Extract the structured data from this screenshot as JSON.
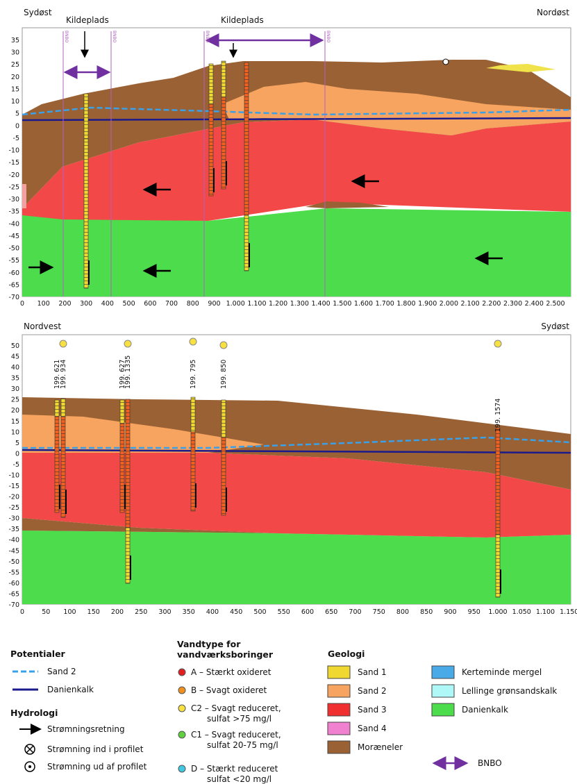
{
  "profiles": [
    {
      "left_label": "Sydøst",
      "right_label": "Nordøst",
      "source_labels": [
        "Kildeplads",
        "Kildeplads"
      ],
      "bnbo_line_labels": [
        "BNBO",
        "BNBO",
        "BNBO",
        "BNBO"
      ],
      "y_tick_labels": [
        "35",
        "30",
        "25",
        "20",
        "15",
        "10",
        "5",
        "0",
        "-5",
        "-10",
        "-15",
        "-20",
        "-25",
        "-30",
        "-35",
        "-40",
        "-45",
        "-50",
        "-55",
        "-60",
        "-65",
        "-70"
      ],
      "x_tick_labels": [
        "0",
        "100",
        "200",
        "300",
        "400",
        "500",
        "600",
        "700",
        "800",
        "900",
        "1.000",
        "1.100",
        "1.200",
        "1.300",
        "1.400",
        "1.500",
        "1.600",
        "1.700",
        "1.800",
        "1.900",
        "2.000",
        "2.100",
        "2.200",
        "2.300",
        "2.400",
        "2.500"
      ]
    },
    {
      "left_label": "Nordvest",
      "right_label": "Sydøst",
      "well_labels": [
        "199. 621",
        "199. 934",
        "199. 627",
        "199. 1335",
        "199. 795",
        "199. 850",
        "199. 1574"
      ],
      "y_tick_labels": [
        "50",
        "45",
        "40",
        "35",
        "30",
        "25",
        "20",
        "15",
        "10",
        "5",
        "0",
        "-5",
        "-10",
        "-15",
        "-20",
        "-25",
        "-30",
        "-35",
        "-40",
        "-45",
        "-50",
        "-55",
        "-60",
        "-65",
        "-70"
      ],
      "x_tick_labels": [
        "0",
        "50",
        "100",
        "150",
        "200",
        "250",
        "300",
        "350",
        "400",
        "450",
        "500",
        "550",
        "600",
        "650",
        "700",
        "750",
        "800",
        "850",
        "900",
        "950",
        "1.000",
        "1.050",
        "1.100",
        "1.150"
      ]
    }
  ],
  "legend": {
    "potentials": {
      "title": "Potentialer",
      "items": [
        "Sand 2",
        "Danienkalk"
      ]
    },
    "hydrology": {
      "title": "Hydrologi",
      "items": [
        "Strømningsretning",
        "Strømning ind i profilet",
        "Strømning ud af profilet"
      ]
    },
    "water_types": {
      "title": [
        "Vandtype for",
        "vandværksboringer"
      ],
      "items": [
        [
          "A – Stærkt oxideret"
        ],
        [
          "B – Svagt oxideret"
        ],
        [
          "C2 – Svagt reduceret,",
          "sulfat >75 mg/l"
        ],
        [
          "C1 – Svagt reduceret,",
          "sulfat 20-75 mg/l"
        ],
        [
          "D – Stærkt reduceret",
          "sulfat <20 mg/l"
        ]
      ]
    },
    "geology": {
      "title": "Geologi",
      "items": [
        "Sand 1",
        "Sand 2",
        "Sand 3",
        "Sand 4",
        "Moræneler",
        "Kerteminde mergel",
        "Lellinge grønsandskalk",
        "Danienkalk"
      ],
      "bnbo": "BNBO"
    }
  }
}
